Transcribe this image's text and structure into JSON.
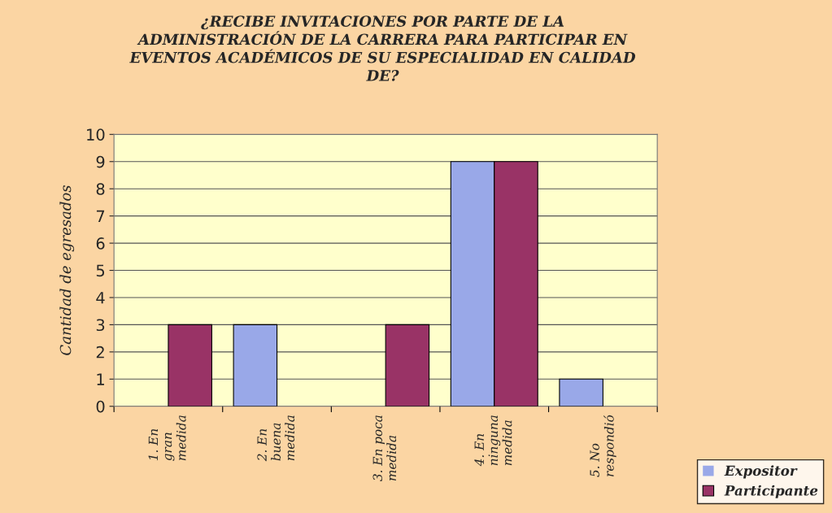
{
  "chart_data": {
    "type": "bar",
    "title": "¿RECIBE INVITACIONES POR PARTE DE LA\nADMINISTRACIÓN DE LA CARRERA PARA PARTICIPAR EN\nEVENTOS ACADÉMICOS DE SU ESPECIALIDAD EN CALIDAD\nDE?",
    "ylabel": "Cantidad de egresados",
    "categories": [
      "1. En\ngran\nmedida",
      "2. En\nbuena\nmedida",
      "3. En poca\nmedida",
      "4. En\nninguna\nmedida",
      "5. No\nrespondió"
    ],
    "series": [
      {
        "name": "Expositor",
        "color": "#99a8e8",
        "values": [
          0,
          3,
          0,
          9,
          1
        ]
      },
      {
        "name": "Participante",
        "color": "#993366",
        "values": [
          3,
          0,
          3,
          9,
          0
        ]
      }
    ],
    "ylim": [
      0,
      10
    ],
    "yticks": [
      0,
      1,
      2,
      3,
      4,
      5,
      6,
      7,
      8,
      9,
      10
    ],
    "grid": "y",
    "legend": "bottom right"
  }
}
